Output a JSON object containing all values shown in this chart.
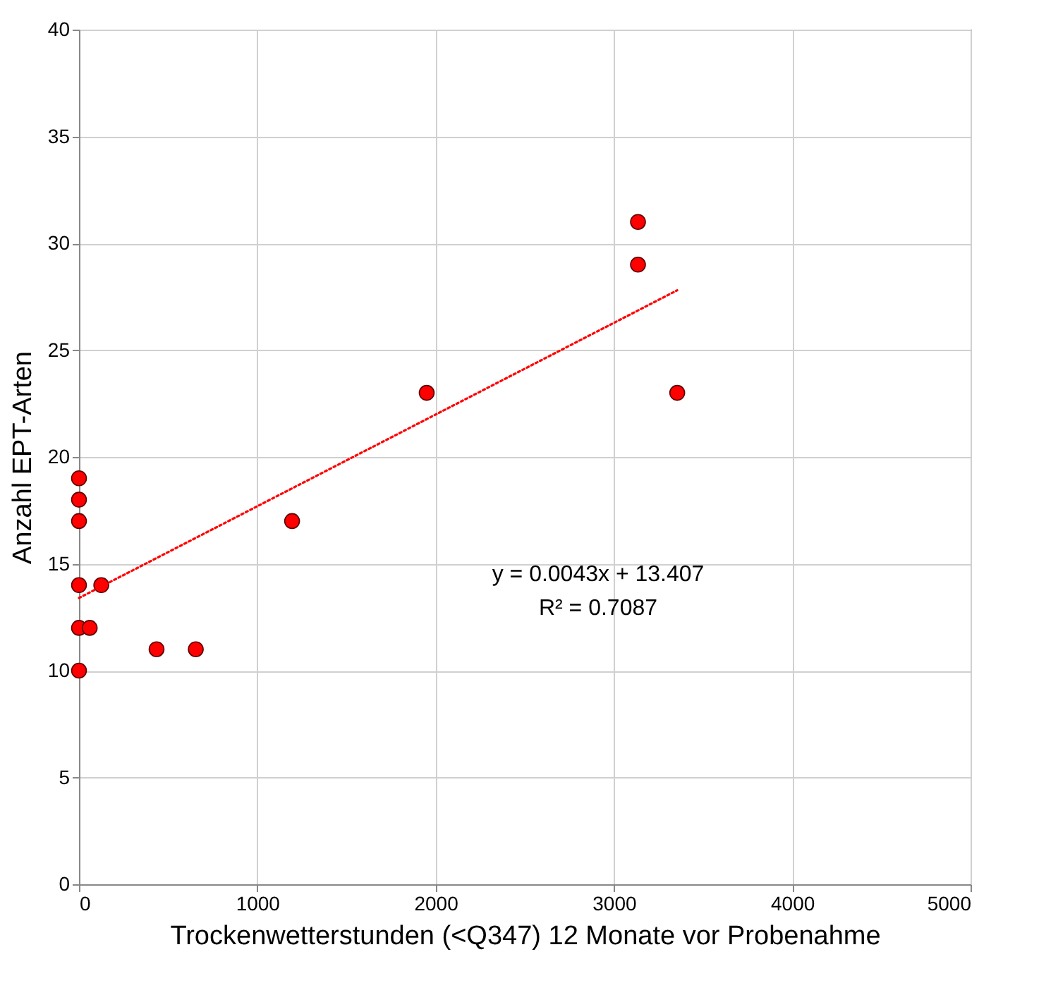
{
  "chart_data": {
    "type": "scatter",
    "xlabel": "Trockenwetterstunden (<Q347) 12 Monate vor Probenahme",
    "ylabel": "Anzahl EPT-Arten",
    "annotations": [
      "y = 0.0043x + 13.407",
      "R² = 0.7087"
    ],
    "series": [
      {
        "marker": "circle",
        "color": "#ff0000",
        "x": [
          0,
          0,
          0,
          0,
          0,
          0,
          60,
          125,
          435,
          655,
          1195,
          1950,
          3135,
          3135,
          3355
        ],
        "values": [
          19,
          18,
          17,
          14,
          12,
          10,
          12,
          14,
          11,
          11,
          17,
          23,
          31,
          29,
          23
        ]
      },
      {
        "type": "line",
        "color": "#ff0000",
        "line_style": "dotted",
        "x": [
          0,
          3355
        ],
        "values": [
          13.4,
          27.8
        ]
      }
    ],
    "xlim": [
      0,
      5000
    ],
    "xticks": [
      0,
      1000,
      2000,
      3000,
      4000,
      5000
    ],
    "ylim": [
      0,
      40
    ],
    "yticks": [
      0,
      5,
      10,
      15,
      20,
      25,
      30,
      35,
      40
    ],
    "grid": true
  }
}
